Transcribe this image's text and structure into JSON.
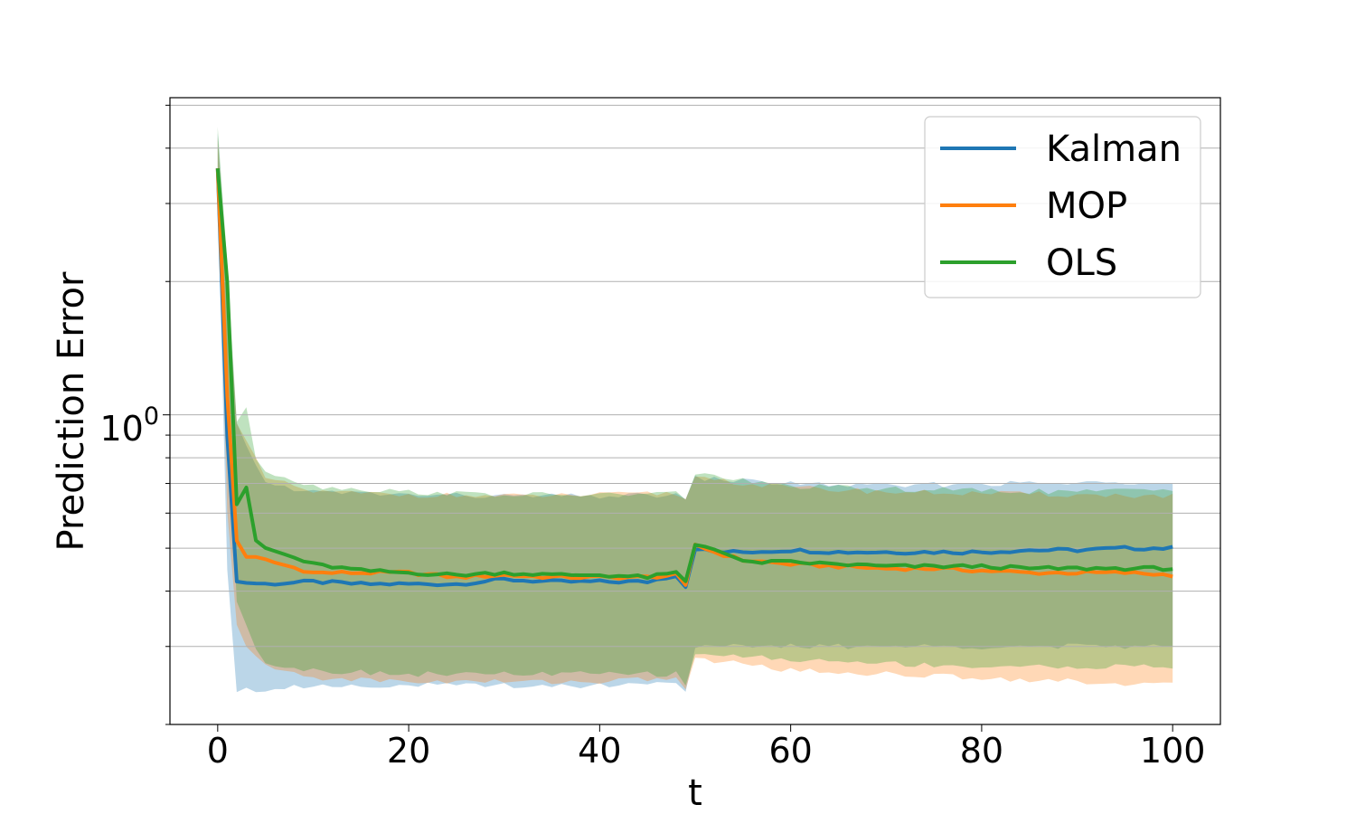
{
  "chart_data": {
    "type": "line",
    "xlabel": "t",
    "ylabel": "Prediction Error",
    "xlim": [
      -5,
      105
    ],
    "ylim": [
      0.2,
      5.2
    ],
    "y_scale": "log",
    "grid": "horizontal",
    "legend_position": "top-right",
    "x_ticks": [
      0,
      20,
      40,
      60,
      80,
      100
    ],
    "x_tick_labels": [
      "0",
      "20",
      "40",
      "60",
      "80",
      "100"
    ],
    "y_major_ticks": [
      1
    ],
    "y_tick_base": "10",
    "y_tick_exponent": "0",
    "y_minor_ticks": [
      0.2,
      0.3,
      0.4,
      0.5,
      0.6,
      0.7,
      0.8,
      0.9,
      2,
      3,
      4,
      5
    ],
    "series": [
      {
        "name": "Kalman",
        "color": "#1f77b4",
        "band_color": "#1f77b4",
        "points": [
          [
            0,
            3.6
          ],
          [
            1,
            0.9
          ],
          [
            2,
            0.42
          ],
          [
            5,
            0.415
          ],
          [
            10,
            0.42
          ],
          [
            15,
            0.415
          ],
          [
            20,
            0.415
          ],
          [
            25,
            0.415
          ],
          [
            30,
            0.425
          ],
          [
            35,
            0.42
          ],
          [
            40,
            0.42
          ],
          [
            45,
            0.42
          ],
          [
            48,
            0.435
          ],
          [
            49,
            0.41
          ],
          [
            50,
            0.5
          ],
          [
            52,
            0.49
          ],
          [
            55,
            0.49
          ],
          [
            60,
            0.495
          ],
          [
            65,
            0.49
          ],
          [
            70,
            0.49
          ],
          [
            75,
            0.49
          ],
          [
            80,
            0.49
          ],
          [
            85,
            0.495
          ],
          [
            90,
            0.495
          ],
          [
            95,
            0.5
          ],
          [
            100,
            0.5
          ]
        ],
        "lower": [
          [
            0,
            3.2
          ],
          [
            1,
            0.45
          ],
          [
            2,
            0.24
          ],
          [
            5,
            0.24
          ],
          [
            10,
            0.245
          ],
          [
            20,
            0.245
          ],
          [
            30,
            0.245
          ],
          [
            40,
            0.245
          ],
          [
            48,
            0.25
          ],
          [
            49,
            0.24
          ],
          [
            50,
            0.3
          ],
          [
            100,
            0.3
          ]
        ],
        "upper": [
          [
            0,
            4.3
          ],
          [
            2,
            0.95
          ],
          [
            5,
            0.7
          ],
          [
            10,
            0.67
          ],
          [
            20,
            0.66
          ],
          [
            30,
            0.655
          ],
          [
            40,
            0.655
          ],
          [
            48,
            0.66
          ],
          [
            49,
            0.64
          ],
          [
            50,
            0.72
          ],
          [
            55,
            0.71
          ],
          [
            60,
            0.7
          ],
          [
            70,
            0.69
          ],
          [
            80,
            0.7
          ],
          [
            90,
            0.7
          ],
          [
            100,
            0.71
          ]
        ]
      },
      {
        "name": "MOP",
        "color": "#ff7f0e",
        "band_color": "#ff7f0e",
        "points": [
          [
            0,
            3.6
          ],
          [
            1,
            1.1
          ],
          [
            2,
            0.52
          ],
          [
            3,
            0.48
          ],
          [
            5,
            0.47
          ],
          [
            10,
            0.44
          ],
          [
            15,
            0.44
          ],
          [
            20,
            0.44
          ],
          [
            25,
            0.43
          ],
          [
            30,
            0.435
          ],
          [
            35,
            0.43
          ],
          [
            40,
            0.43
          ],
          [
            45,
            0.43
          ],
          [
            48,
            0.435
          ],
          [
            49,
            0.41
          ],
          [
            50,
            0.51
          ],
          [
            52,
            0.49
          ],
          [
            55,
            0.47
          ],
          [
            60,
            0.46
          ],
          [
            65,
            0.455
          ],
          [
            70,
            0.45
          ],
          [
            75,
            0.45
          ],
          [
            80,
            0.445
          ],
          [
            85,
            0.44
          ],
          [
            90,
            0.44
          ],
          [
            95,
            0.44
          ],
          [
            100,
            0.435
          ]
        ],
        "lower": [
          [
            0,
            3.2
          ],
          [
            1,
            0.6
          ],
          [
            2,
            0.34
          ],
          [
            3,
            0.3
          ],
          [
            5,
            0.27
          ],
          [
            10,
            0.255
          ],
          [
            20,
            0.25
          ],
          [
            30,
            0.25
          ],
          [
            40,
            0.25
          ],
          [
            48,
            0.255
          ],
          [
            49,
            0.24
          ],
          [
            50,
            0.28
          ],
          [
            55,
            0.275
          ],
          [
            60,
            0.265
          ],
          [
            70,
            0.26
          ],
          [
            80,
            0.255
          ],
          [
            90,
            0.25
          ],
          [
            100,
            0.245
          ]
        ],
        "upper": [
          [
            0,
            4.3
          ],
          [
            2,
            0.95
          ],
          [
            5,
            0.72
          ],
          [
            10,
            0.67
          ],
          [
            20,
            0.66
          ],
          [
            30,
            0.655
          ],
          [
            40,
            0.66
          ],
          [
            48,
            0.665
          ],
          [
            49,
            0.64
          ],
          [
            50,
            0.73
          ],
          [
            55,
            0.7
          ],
          [
            60,
            0.685
          ],
          [
            70,
            0.67
          ],
          [
            80,
            0.665
          ],
          [
            90,
            0.66
          ],
          [
            100,
            0.655
          ]
        ]
      },
      {
        "name": "OLS",
        "color": "#2ca02c",
        "band_color": "#2ca02c",
        "points": [
          [
            0,
            3.6
          ],
          [
            1,
            2.0
          ],
          [
            2,
            0.63
          ],
          [
            3,
            0.68
          ],
          [
            4,
            0.52
          ],
          [
            5,
            0.5
          ],
          [
            10,
            0.46
          ],
          [
            15,
            0.445
          ],
          [
            20,
            0.44
          ],
          [
            25,
            0.435
          ],
          [
            30,
            0.44
          ],
          [
            35,
            0.435
          ],
          [
            40,
            0.435
          ],
          [
            45,
            0.43
          ],
          [
            48,
            0.44
          ],
          [
            49,
            0.42
          ],
          [
            50,
            0.51
          ],
          [
            52,
            0.5
          ],
          [
            55,
            0.465
          ],
          [
            60,
            0.465
          ],
          [
            65,
            0.46
          ],
          [
            70,
            0.455
          ],
          [
            75,
            0.455
          ],
          [
            80,
            0.455
          ],
          [
            85,
            0.45
          ],
          [
            90,
            0.45
          ],
          [
            95,
            0.45
          ],
          [
            100,
            0.45
          ]
        ],
        "lower": [
          [
            0,
            3.2
          ],
          [
            2,
            0.38
          ],
          [
            3,
            0.34
          ],
          [
            4,
            0.3
          ],
          [
            5,
            0.275
          ],
          [
            10,
            0.265
          ],
          [
            20,
            0.26
          ],
          [
            30,
            0.26
          ],
          [
            40,
            0.26
          ],
          [
            48,
            0.26
          ],
          [
            49,
            0.245
          ],
          [
            50,
            0.29
          ],
          [
            60,
            0.28
          ],
          [
            70,
            0.275
          ],
          [
            80,
            0.27
          ],
          [
            90,
            0.27
          ],
          [
            100,
            0.27
          ]
        ],
        "upper": [
          [
            0,
            4.5
          ],
          [
            1,
            2.2
          ],
          [
            2,
            0.95
          ],
          [
            3,
            1.05
          ],
          [
            4,
            0.8
          ],
          [
            5,
            0.75
          ],
          [
            10,
            0.69
          ],
          [
            20,
            0.67
          ],
          [
            30,
            0.66
          ],
          [
            40,
            0.66
          ],
          [
            48,
            0.665
          ],
          [
            49,
            0.65
          ],
          [
            50,
            0.74
          ],
          [
            55,
            0.71
          ],
          [
            60,
            0.69
          ],
          [
            70,
            0.68
          ],
          [
            80,
            0.675
          ],
          [
            90,
            0.67
          ],
          [
            100,
            0.68
          ]
        ]
      }
    ]
  }
}
